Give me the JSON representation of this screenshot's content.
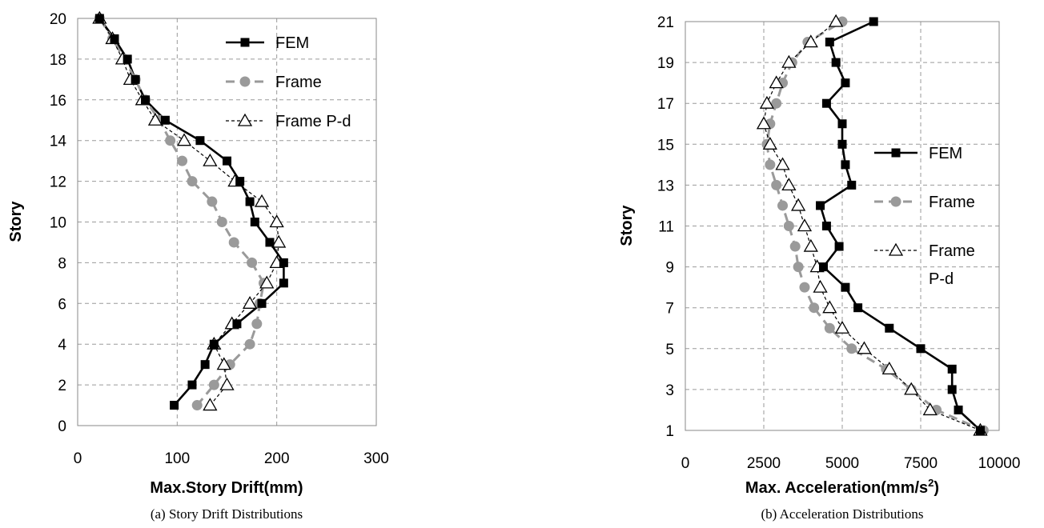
{
  "chart_data": [
    {
      "type": "line",
      "caption": "(a) Story Drift Distributions",
      "xlabel": "Max.Story Drift(mm)",
      "ylabel": "Story",
      "xlim": [
        0,
        300
      ],
      "ylim": [
        0,
        20
      ],
      "xticks": [
        "0",
        "100",
        "200",
        "300"
      ],
      "yticks": [
        "0",
        "2",
        "4",
        "6",
        "8",
        "10",
        "12",
        "14",
        "16",
        "18",
        "20"
      ],
      "grid": true,
      "legend_position": "top-right",
      "series": [
        {
          "name": "FEM",
          "color": "#000000",
          "marker": "square",
          "points": [
            {
              "x": 97,
              "y": 1
            },
            {
              "x": 115,
              "y": 2
            },
            {
              "x": 128,
              "y": 3
            },
            {
              "x": 137,
              "y": 4
            },
            {
              "x": 160,
              "y": 5
            },
            {
              "x": 185,
              "y": 6
            },
            {
              "x": 207,
              "y": 7
            },
            {
              "x": 207,
              "y": 8
            },
            {
              "x": 193,
              "y": 9
            },
            {
              "x": 178,
              "y": 10
            },
            {
              "x": 173,
              "y": 11
            },
            {
              "x": 163,
              "y": 12
            },
            {
              "x": 150,
              "y": 13
            },
            {
              "x": 123,
              "y": 14
            },
            {
              "x": 88,
              "y": 15
            },
            {
              "x": 68,
              "y": 16
            },
            {
              "x": 58,
              "y": 17
            },
            {
              "x": 50,
              "y": 18
            },
            {
              "x": 37,
              "y": 19
            },
            {
              "x": 22,
              "y": 20
            }
          ]
        },
        {
          "name": "Frame",
          "color": "#9a9a9a",
          "marker": "circle",
          "points": [
            {
              "x": 120,
              "y": 1
            },
            {
              "x": 137,
              "y": 2
            },
            {
              "x": 153,
              "y": 3
            },
            {
              "x": 173,
              "y": 4
            },
            {
              "x": 180,
              "y": 5
            },
            {
              "x": 183,
              "y": 6
            },
            {
              "x": 187,
              "y": 7
            },
            {
              "x": 175,
              "y": 8
            },
            {
              "x": 157,
              "y": 9
            },
            {
              "x": 145,
              "y": 10
            },
            {
              "x": 135,
              "y": 11
            },
            {
              "x": 115,
              "y": 12
            },
            {
              "x": 105,
              "y": 13
            },
            {
              "x": 93,
              "y": 14
            },
            {
              "x": 82,
              "y": 15
            },
            {
              "x": 68,
              "y": 16
            },
            {
              "x": 58,
              "y": 17
            },
            {
              "x": 47,
              "y": 18
            },
            {
              "x": 35,
              "y": 19
            },
            {
              "x": 22,
              "y": 20
            }
          ]
        },
        {
          "name": "Frame P-d",
          "color": "#000000",
          "marker": "triangle",
          "points": [
            {
              "x": 133,
              "y": 1
            },
            {
              "x": 150,
              "y": 2
            },
            {
              "x": 147,
              "y": 3
            },
            {
              "x": 137,
              "y": 4
            },
            {
              "x": 155,
              "y": 5
            },
            {
              "x": 173,
              "y": 6
            },
            {
              "x": 190,
              "y": 7
            },
            {
              "x": 200,
              "y": 8
            },
            {
              "x": 202,
              "y": 9
            },
            {
              "x": 200,
              "y": 10
            },
            {
              "x": 185,
              "y": 11
            },
            {
              "x": 158,
              "y": 12
            },
            {
              "x": 133,
              "y": 13
            },
            {
              "x": 107,
              "y": 14
            },
            {
              "x": 78,
              "y": 15
            },
            {
              "x": 65,
              "y": 16
            },
            {
              "x": 53,
              "y": 17
            },
            {
              "x": 45,
              "y": 18
            },
            {
              "x": 35,
              "y": 19
            },
            {
              "x": 22,
              "y": 20
            }
          ]
        }
      ]
    },
    {
      "type": "line",
      "caption": "(b) Acceleration Distributions",
      "xlabel": "Max. Acceleration(mm/s",
      "xlabel_sup": "2",
      "xlabel_end": ")",
      "ylabel": "Story",
      "xlim": [
        0,
        10000
      ],
      "ylim": [
        1,
        21
      ],
      "xticks": [
        "0",
        "2500",
        "5000",
        "7500",
        "10000"
      ],
      "yticks": [
        "1",
        "3",
        "5",
        "7",
        "9",
        "11",
        "13",
        "15",
        "17",
        "19",
        "21"
      ],
      "grid": true,
      "legend_position": "right",
      "series": [
        {
          "name": "FEM",
          "color": "#000000",
          "marker": "square",
          "points": [
            {
              "x": 9400,
              "y": 1
            },
            {
              "x": 8700,
              "y": 2
            },
            {
              "x": 8500,
              "y": 3
            },
            {
              "x": 8500,
              "y": 4
            },
            {
              "x": 7500,
              "y": 5
            },
            {
              "x": 6500,
              "y": 6
            },
            {
              "x": 5500,
              "y": 7
            },
            {
              "x": 5100,
              "y": 8
            },
            {
              "x": 4400,
              "y": 9
            },
            {
              "x": 4900,
              "y": 10
            },
            {
              "x": 4500,
              "y": 11
            },
            {
              "x": 4300,
              "y": 12
            },
            {
              "x": 5300,
              "y": 13
            },
            {
              "x": 5100,
              "y": 14
            },
            {
              "x": 5000,
              "y": 15
            },
            {
              "x": 5000,
              "y": 16
            },
            {
              "x": 4500,
              "y": 17
            },
            {
              "x": 5100,
              "y": 18
            },
            {
              "x": 4800,
              "y": 19
            },
            {
              "x": 4600,
              "y": 20
            },
            {
              "x": 6000,
              "y": 21
            }
          ]
        },
        {
          "name": "Frame",
          "color": "#9a9a9a",
          "marker": "circle",
          "points": [
            {
              "x": 9500,
              "y": 1
            },
            {
              "x": 8000,
              "y": 2
            },
            {
              "x": 7200,
              "y": 3
            },
            {
              "x": 6400,
              "y": 4
            },
            {
              "x": 5300,
              "y": 5
            },
            {
              "x": 4600,
              "y": 6
            },
            {
              "x": 4100,
              "y": 7
            },
            {
              "x": 3800,
              "y": 8
            },
            {
              "x": 3600,
              "y": 9
            },
            {
              "x": 3500,
              "y": 10
            },
            {
              "x": 3300,
              "y": 11
            },
            {
              "x": 3100,
              "y": 12
            },
            {
              "x": 2900,
              "y": 13
            },
            {
              "x": 2700,
              "y": 14
            },
            {
              "x": 2600,
              "y": 15
            },
            {
              "x": 2700,
              "y": 16
            },
            {
              "x": 2900,
              "y": 17
            },
            {
              "x": 3100,
              "y": 18
            },
            {
              "x": 3400,
              "y": 19
            },
            {
              "x": 3900,
              "y": 20
            },
            {
              "x": 5000,
              "y": 21
            }
          ]
        },
        {
          "name": "Frame",
          "name_line2": "P-d",
          "color": "#000000",
          "marker": "triangle",
          "points": [
            {
              "x": 9400,
              "y": 1
            },
            {
              "x": 7800,
              "y": 2
            },
            {
              "x": 7200,
              "y": 3
            },
            {
              "x": 6500,
              "y": 4
            },
            {
              "x": 5700,
              "y": 5
            },
            {
              "x": 5000,
              "y": 6
            },
            {
              "x": 4600,
              "y": 7
            },
            {
              "x": 4300,
              "y": 8
            },
            {
              "x": 4200,
              "y": 9
            },
            {
              "x": 4000,
              "y": 10
            },
            {
              "x": 3800,
              "y": 11
            },
            {
              "x": 3600,
              "y": 12
            },
            {
              "x": 3300,
              "y": 13
            },
            {
              "x": 3100,
              "y": 14
            },
            {
              "x": 2700,
              "y": 15
            },
            {
              "x": 2500,
              "y": 16
            },
            {
              "x": 2600,
              "y": 17
            },
            {
              "x": 2900,
              "y": 18
            },
            {
              "x": 3300,
              "y": 19
            },
            {
              "x": 4000,
              "y": 20
            },
            {
              "x": 4800,
              "y": 21
            }
          ]
        }
      ]
    }
  ]
}
